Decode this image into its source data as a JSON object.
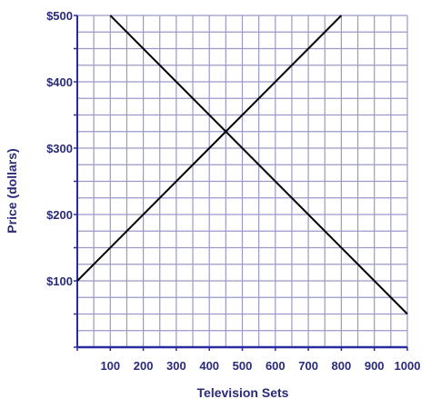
{
  "chart_data": {
    "type": "line",
    "title": "",
    "xlabel": "Television Sets",
    "ylabel": "Price (dollars)",
    "xlim": [
      0,
      1000
    ],
    "ylim": [
      0,
      500
    ],
    "x_ticks": [
      100,
      200,
      300,
      400,
      500,
      600,
      700,
      800,
      900,
      1000
    ],
    "x_tick_labels": [
      "100",
      "200",
      "300",
      "400",
      "500",
      "600",
      "700",
      "800",
      "900",
      "1000"
    ],
    "y_ticks": [
      100,
      200,
      300,
      400,
      500
    ],
    "y_tick_labels": [
      "$100",
      "$200",
      "$300",
      "$400",
      "$500"
    ],
    "grid": true,
    "grid_step_x": 50,
    "grid_step_y": 25,
    "series": [
      {
        "points": [
          [
            0,
            100
          ],
          [
            800,
            500
          ]
        ]
      },
      {
        "points": [
          [
            100,
            500
          ],
          [
            1000,
            50
          ]
        ]
      }
    ]
  },
  "colors": {
    "grid": "#9a99c8",
    "axis": "#2b2ba0",
    "line": "#000000",
    "text": "#2a2a7a"
  }
}
